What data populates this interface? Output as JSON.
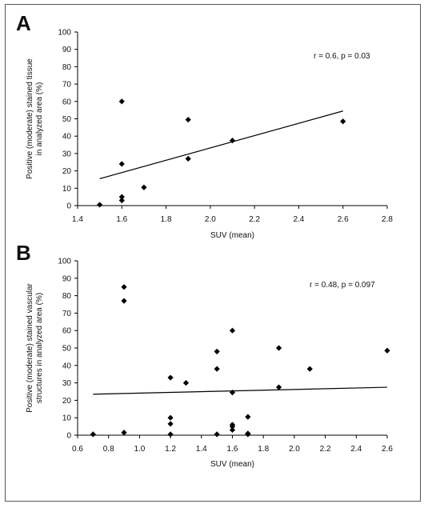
{
  "chart_data": [
    {
      "panel": "A",
      "type": "scatter",
      "title": "",
      "xlabel": "SUV (mean)",
      "ylabel": [
        "Positive (moderate) stained tissue",
        "in analyzed area (%)"
      ],
      "xlim": [
        1.4,
        2.8
      ],
      "ylim": [
        0,
        100
      ],
      "xticks": [
        "1.4",
        "1.6",
        "1.8",
        "2.0",
        "2.2",
        "2.4",
        "2.6",
        "2.8"
      ],
      "yticks": [
        "0",
        "10",
        "20",
        "30",
        "40",
        "50",
        "60",
        "70",
        "80",
        "90",
        "100"
      ],
      "annotation": "r = 0.6, p = 0.03",
      "series": [
        {
          "points": [
            {
              "x": 1.5,
              "y": 0.5
            },
            {
              "x": 1.6,
              "y": 60
            },
            {
              "x": 1.6,
              "y": 24
            },
            {
              "x": 1.6,
              "y": 5
            },
            {
              "x": 1.6,
              "y": 3
            },
            {
              "x": 1.7,
              "y": 10.5
            },
            {
              "x": 1.9,
              "y": 49.5
            },
            {
              "x": 1.9,
              "y": 27
            },
            {
              "x": 2.1,
              "y": 37.5
            },
            {
              "x": 2.6,
              "y": 48.5
            }
          ]
        }
      ],
      "trendline": {
        "x": [
          1.5,
          2.6
        ],
        "y": [
          15.5,
          54.5
        ]
      }
    },
    {
      "panel": "B",
      "type": "scatter",
      "title": "",
      "xlabel": "SUV (mean)",
      "ylabel": [
        "Positive (moderate) stained vascular",
        "structures in analyzed area (%)"
      ],
      "xlim": [
        0.6,
        2.6
      ],
      "ylim": [
        0,
        100
      ],
      "xticks": [
        "0.6",
        "0.8",
        "1.0",
        "1.2",
        "1.4",
        "1.6",
        "1.8",
        "2.0",
        "2.2",
        "2.4",
        "2.6"
      ],
      "yticks": [
        "0",
        "10",
        "20",
        "30",
        "40",
        "50",
        "60",
        "70",
        "80",
        "90",
        "100"
      ],
      "annotation": "r = 0.48, p = 0.097",
      "series": [
        {
          "points": [
            {
              "x": 0.7,
              "y": 0.5
            },
            {
              "x": 0.9,
              "y": 85
            },
            {
              "x": 0.9,
              "y": 77
            },
            {
              "x": 0.9,
              "y": 1.5
            },
            {
              "x": 1.2,
              "y": 33
            },
            {
              "x": 1.2,
              "y": 10
            },
            {
              "x": 1.2,
              "y": 6.5
            },
            {
              "x": 1.2,
              "y": 0.5
            },
            {
              "x": 1.3,
              "y": 30
            },
            {
              "x": 1.5,
              "y": 48
            },
            {
              "x": 1.5,
              "y": 38
            },
            {
              "x": 1.5,
              "y": 0.5
            },
            {
              "x": 1.6,
              "y": 60
            },
            {
              "x": 1.6,
              "y": 24.5
            },
            {
              "x": 1.6,
              "y": 6
            },
            {
              "x": 1.6,
              "y": 5
            },
            {
              "x": 1.6,
              "y": 3
            },
            {
              "x": 1.7,
              "y": 10.5
            },
            {
              "x": 1.7,
              "y": 1
            },
            {
              "x": 1.7,
              "y": 0.5
            },
            {
              "x": 1.9,
              "y": 50
            },
            {
              "x": 1.9,
              "y": 27.5
            },
            {
              "x": 2.1,
              "y": 38
            },
            {
              "x": 2.6,
              "y": 48.5
            }
          ]
        }
      ],
      "trendline": {
        "x": [
          0.7,
          2.6
        ],
        "y": [
          23.5,
          27.5
        ]
      }
    }
  ]
}
